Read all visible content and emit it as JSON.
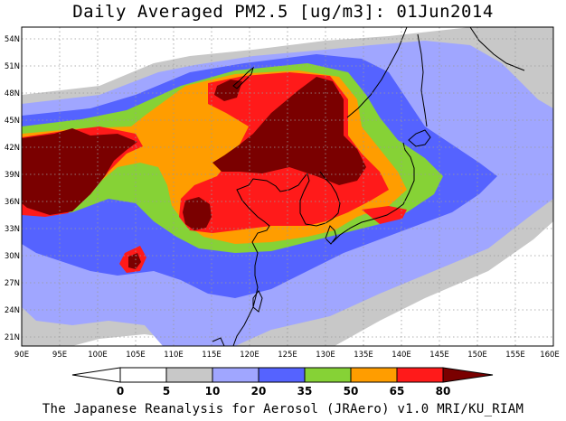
{
  "title": "Daily Averaged PM2.5 [ug/m3]: 01Jun2014",
  "credit": "The Japanese Reanalysis for Aerosol (JRAero) v1.0 MRI/KU_RIAM",
  "map": {
    "lon_range": [
      90,
      160
    ],
    "lat_range": [
      20,
      55
    ],
    "lon_labels": [
      "90E",
      "95E",
      "100E",
      "105E",
      "110E",
      "115E",
      "120E",
      "125E",
      "130E",
      "135E",
      "140E",
      "145E",
      "150E",
      "155E",
      "160E"
    ],
    "lat_labels": [
      "21N",
      "24N",
      "27N",
      "30N",
      "33N",
      "36N",
      "39N",
      "42N",
      "45N",
      "48N",
      "51N",
      "54N"
    ]
  },
  "colorbar": {
    "labels": [
      "0",
      "5",
      "10",
      "20",
      "35",
      "50",
      "65",
      "80"
    ],
    "colors": [
      "#ffffff",
      "#c8c8c8",
      "#a0a6ff",
      "#5563ff",
      "#86d236",
      "#ff9d00",
      "#ff1a1a",
      "#7a0000"
    ]
  }
}
